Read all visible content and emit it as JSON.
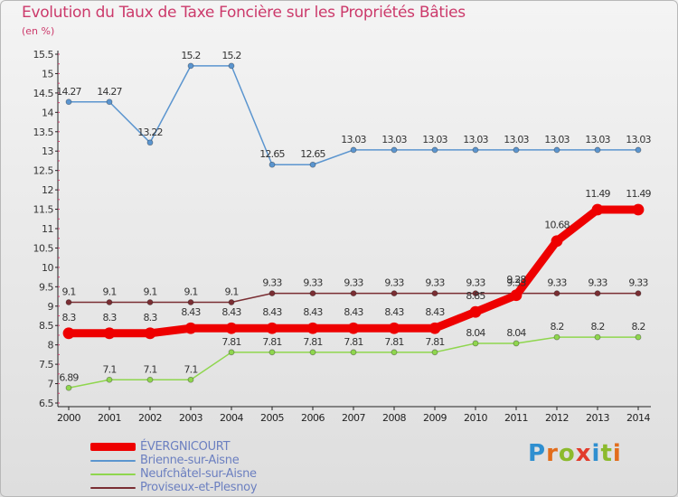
{
  "title": "Evolution du Taux de Taxe Foncière sur les Propriétés Bâties",
  "unit_label": "(en %)",
  "logo": {
    "text": "Proxiti",
    "letters": [
      "P",
      "r",
      "o",
      "x",
      "i",
      "t",
      "i"
    ]
  },
  "chart_data": {
    "type": "line",
    "title": "Evolution du Taux de Taxe Foncière sur les Propriétés Bâties",
    "ylabel": "(en %)",
    "xlabel": "",
    "ylim": [
      6.5,
      15.5
    ],
    "ystep": 0.5,
    "grid": false,
    "legend_position": "bottom-left",
    "categories": [
      "2000",
      "2001",
      "2002",
      "2003",
      "2004",
      "2005",
      "2006",
      "2007",
      "2008",
      "2009",
      "2010",
      "2011",
      "2012",
      "2013",
      "2014"
    ],
    "series": [
      {
        "name": "ÉVERGNICOURT",
        "color": "#ee0000",
        "values": [
          8.3,
          8.3,
          8.3,
          8.43,
          8.43,
          8.43,
          8.43,
          8.43,
          8.43,
          8.43,
          8.85,
          9.28,
          10.68,
          11.49,
          11.49
        ],
        "labels": [
          "8.3",
          "8.3",
          "8.3",
          "8.43",
          "8.43",
          "8.43",
          "8.43",
          "8.43",
          "8.43",
          "8.43",
          "8.85",
          "9.28",
          "10.68",
          "11.49",
          "11.49"
        ],
        "bold": true
      },
      {
        "name": "Brienne-sur-Aisne",
        "color": "#5b95cf",
        "values": [
          14.27,
          14.27,
          13.22,
          15.2,
          15.2,
          12.65,
          12.65,
          13.03,
          13.03,
          13.03,
          13.03,
          13.03,
          13.03,
          13.03,
          13.03
        ],
        "labels": [
          "14.27",
          "14.27",
          "13.22",
          "15.2",
          "15.2",
          "12.65",
          "12.65",
          "13.03",
          "13.03",
          "13.03",
          "13.03",
          "13.03",
          "13.03",
          "13.03",
          "13.03"
        ]
      },
      {
        "name": "Neufchâtel-sur-Aisne",
        "color": "#8fd64e",
        "values": [
          6.89,
          7.1,
          7.1,
          7.1,
          7.81,
          7.81,
          7.81,
          7.81,
          7.81,
          7.81,
          8.04,
          8.04,
          8.2,
          8.2,
          8.2
        ],
        "labels": [
          "6.89",
          "7.1",
          "7.1",
          "7.1",
          "7.81",
          "7.81",
          "7.81",
          "7.81",
          "7.81",
          "7.81",
          "8.04",
          "8.04",
          "8.2",
          "8.2",
          "8.2"
        ]
      },
      {
        "name": "Proviseux-et-Plesnoy",
        "color": "#7a2e33",
        "values": [
          9.1,
          9.1,
          9.1,
          9.1,
          9.1,
          9.33,
          9.33,
          9.33,
          9.33,
          9.33,
          9.33,
          9.33,
          9.33,
          9.33,
          9.33
        ],
        "labels": [
          "9.1",
          "9.1",
          "9.1",
          "9.1",
          "9.1",
          "9.33",
          "9.33",
          "9.33",
          "9.33",
          "9.33",
          "9.33",
          "9.33",
          "9.33",
          "9.33",
          "9.33"
        ]
      }
    ]
  }
}
